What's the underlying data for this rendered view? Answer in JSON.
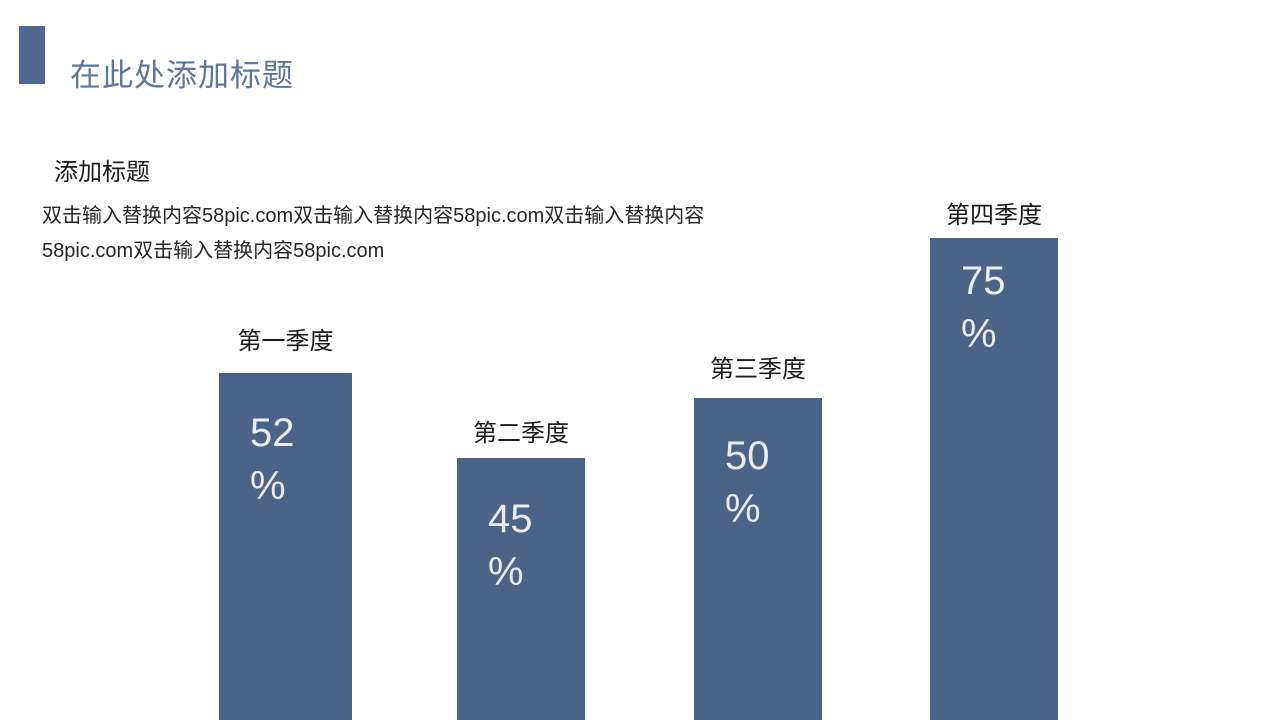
{
  "slide": {
    "header": {
      "title": "在此处添加标题",
      "accent_color": "#4E6890",
      "title_color": "#5E769B"
    },
    "section": {
      "heading": "添加标题",
      "body_line1": "双击输入替换内容58pic.com双击输入替换内容58pic.com双击输入替换内容",
      "body_line2": "58pic.com双击输入替换内容58pic.com"
    }
  },
  "chart_data": {
    "type": "bar",
    "categories": [
      "第一季度",
      "第二季度",
      "第三季度",
      "第四季度"
    ],
    "values": [
      52,
      45,
      50,
      75
    ],
    "unit": "%",
    "title": "",
    "xlabel": "",
    "ylabel": "",
    "legend_position": "none",
    "grid": false,
    "axes_visible": false,
    "value_label_position": "inside-top-left",
    "category_label_position": "above-bar",
    "bar_color": "#4A6387",
    "value_label_color": "#E9EDF3",
    "category_label_color": "#1B1B1B",
    "bars_cropped_at_bottom": true
  }
}
